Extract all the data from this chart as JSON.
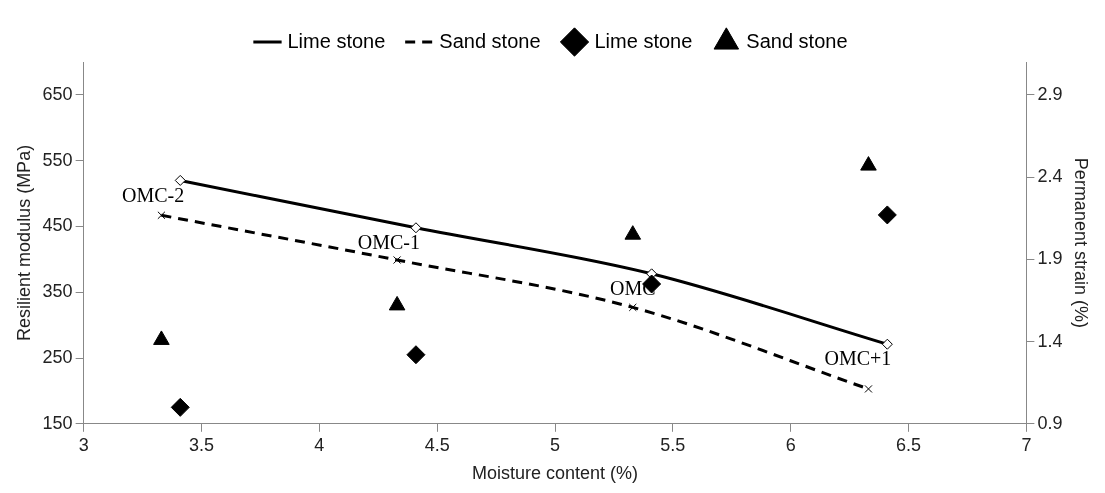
{
  "chart_data": {
    "type": "line",
    "xlabel": "Moisture content (%)",
    "ylabel": "Resilient modulus (MPa)",
    "y2label": "Permanent strain (%)",
    "xlim": [
      3,
      7
    ],
    "xticks": [
      3,
      3.5,
      4,
      4.5,
      5,
      5.5,
      6,
      6.5,
      7
    ],
    "ylim": [
      150,
      700
    ],
    "yticks": [
      150,
      250,
      350,
      450,
      550,
      650
    ],
    "y2lim": [
      0.9,
      3.1
    ],
    "y2ticks": [
      0.9,
      1.4,
      1.9,
      2.4,
      2.9
    ],
    "grid": false,
    "legend": "top",
    "series": [
      {
        "name": "Lime stone",
        "color": "#000000",
        "marker": "diamond",
        "line_style": "solid",
        "x": [
          3.41,
          4.41,
          5.41,
          6.41
        ],
        "values": [
          520,
          448,
          378,
          271
        ]
      },
      {
        "name": "Sand stone",
        "color": "#000000",
        "marker": "cross",
        "line_style": "dashed",
        "x": [
          3.33,
          4.33,
          5.33,
          6.33
        ],
        "values": [
          467,
          399,
          327,
          203
        ]
      },
      {
        "name": "Lime stone",
        "type": "scatter",
        "axis": "y2",
        "color": "#000000",
        "marker": "diamond",
        "x": [
          3.41,
          4.41,
          5.41,
          6.41
        ],
        "values": [
          1.0,
          1.32,
          1.75,
          2.17
        ]
      },
      {
        "name": "Sand stone",
        "type": "scatter",
        "axis": "y2",
        "color": "#000000",
        "marker": "triangle",
        "x": [
          3.33,
          4.33,
          5.33,
          6.33
        ],
        "values": [
          1.41,
          1.62,
          2.05,
          2.47
        ]
      }
    ],
    "annotations": [
      {
        "text": "OMC-2",
        "x": 3.41,
        "y": 520
      },
      {
        "text": "OMC-1",
        "x": 4.41,
        "y": 448
      },
      {
        "text": "OMC",
        "x": 5.41,
        "y": 378
      },
      {
        "text": "OMC+1",
        "x": 6.41,
        "y": 271
      }
    ]
  }
}
